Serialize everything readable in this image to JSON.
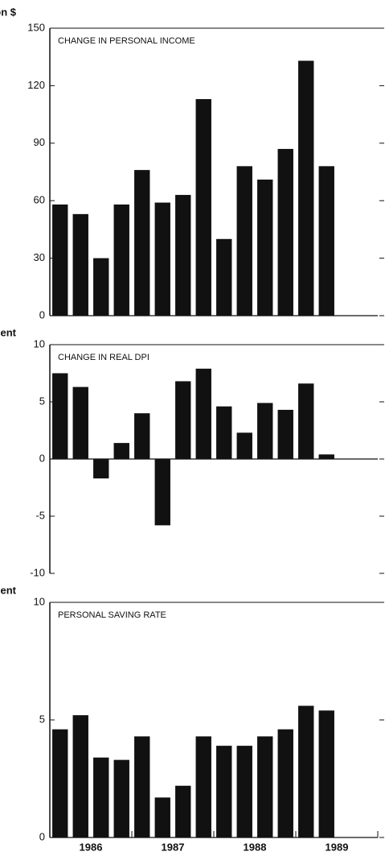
{
  "chart_data": [
    {
      "type": "bar",
      "title": "CHANGE IN PERSONAL INCOME",
      "y_label": "Billion $",
      "categories": [
        null,
        null,
        null,
        null,
        null,
        null,
        null,
        null,
        null,
        null,
        null,
        null,
        null,
        null
      ],
      "values": [
        58,
        53,
        30,
        58,
        76,
        59,
        63,
        113,
        40,
        78,
        71,
        87,
        133,
        78
      ],
      "color": "#111111",
      "ylim": [
        0,
        150
      ],
      "yticks": [
        0,
        30,
        60,
        90,
        120,
        150
      ]
    },
    {
      "type": "bar",
      "title": "CHANGE IN REAL DPI",
      "y_label": "Percent",
      "categories": [
        null,
        null,
        null,
        null,
        null,
        null,
        null,
        null,
        null,
        null,
        null,
        null,
        null,
        null
      ],
      "values": [
        7.5,
        6.3,
        -1.7,
        1.4,
        4.0,
        -5.8,
        6.8,
        7.9,
        4.6,
        2.3,
        4.9,
        4.3,
        6.6,
        0.4
      ],
      "color": "#111111",
      "ylim": [
        -10,
        10
      ],
      "yticks": [
        -10,
        -5,
        0,
        5,
        10
      ]
    },
    {
      "type": "bar",
      "title": "PERSONAL SAVING RATE",
      "y_label": "Percent",
      "categories": [
        null,
        null,
        null,
        null,
        null,
        null,
        null,
        null,
        null,
        null,
        null,
        null,
        null,
        null
      ],
      "values": [
        4.6,
        5.2,
        3.4,
        3.3,
        4.3,
        1.7,
        2.2,
        4.3,
        3.9,
        3.9,
        4.3,
        4.6,
        5.6,
        5.4
      ],
      "color": "#111111",
      "ylim": [
        0,
        10
      ],
      "yticks": [
        0,
        5,
        10
      ],
      "year_labels": [
        "1986",
        "1987",
        "1988",
        "1989"
      ]
    }
  ]
}
